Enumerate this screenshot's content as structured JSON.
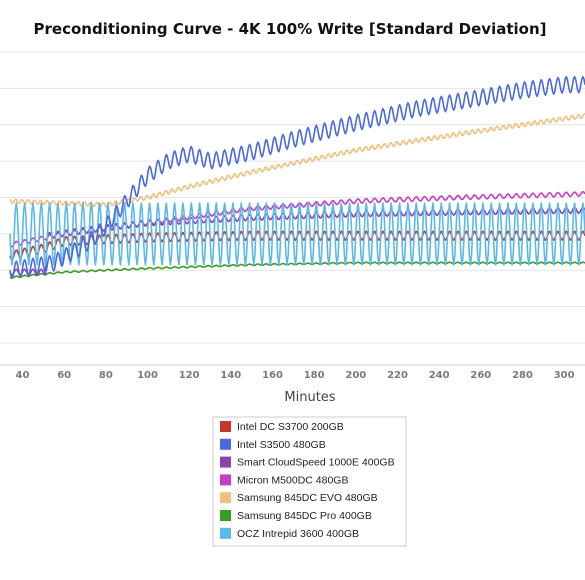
{
  "chart_data": {
    "type": "line",
    "title": "Preconditioning Curve - 4K 100% Write [Standard Deviation]",
    "xlabel": "Minutes",
    "ylabel": "",
    "x_ticks": [
      "40",
      "60",
      "80",
      "100",
      "120",
      "140",
      "160",
      "180",
      "200",
      "220",
      "240",
      "260",
      "280",
      "300"
    ],
    "xlim": [
      34,
      310
    ],
    "ylim": [
      0,
      8
    ],
    "grid": "horizontal",
    "legend_position": "bottom",
    "series": [
      {
        "name": "Intel DC S3700 200GB",
        "color": "#c0392b",
        "x": [
          34,
          50,
          60,
          80,
          100,
          150,
          200,
          250,
          310
        ],
        "y": [
          2.4,
          2.6,
          2.8,
          2.85,
          2.9,
          2.95,
          2.95,
          2.95,
          2.95
        ],
        "osc_amp": 0.12,
        "osc_period": 4
      },
      {
        "name": "Intel S3500 480GB",
        "color": "#4a69dd",
        "x": [
          34,
          55,
          70,
          80,
          90,
          100,
          110,
          120,
          130,
          150,
          170,
          200,
          230,
          260,
          280,
          300,
          310
        ],
        "y": [
          2.0,
          2.2,
          2.7,
          3.2,
          3.9,
          4.6,
          5.0,
          5.2,
          5.0,
          5.25,
          5.6,
          6.05,
          6.45,
          6.75,
          6.95,
          7.1,
          7.1
        ],
        "osc_amp": 0.22,
        "osc_period": 4
      },
      {
        "name": "Smart CloudSpeed 1000E 400GB",
        "color": "#8e44ad",
        "x": [
          34,
          51,
          52,
          70,
          100,
          150,
          200,
          250,
          310
        ],
        "y": [
          1.95,
          1.95,
          2.95,
          3.1,
          3.3,
          3.45,
          3.55,
          3.6,
          3.65
        ],
        "osc_amp": 0.08,
        "osc_period": 4
      },
      {
        "name": "Micron M500DC 480GB",
        "color": "#c83ec0",
        "x": [
          34,
          60,
          100,
          150,
          200,
          250,
          310
        ],
        "y": [
          2.7,
          3.0,
          3.3,
          3.7,
          3.9,
          4.0,
          4.1
        ],
        "osc_amp": 0.06,
        "osc_period": 4
      },
      {
        "name": "Samsung 845DC EVO 480GB",
        "color": "#f0c080",
        "x": [
          34,
          80,
          100,
          120,
          150,
          200,
          250,
          310
        ],
        "y": [
          3.9,
          3.8,
          4.0,
          4.3,
          4.7,
          5.3,
          5.75,
          6.25
        ],
        "osc_amp": 0.06,
        "osc_period": 3
      },
      {
        "name": "Samsung 845DC Pro 400GB",
        "color": "#3a9d23",
        "x": [
          34,
          60,
          100,
          150,
          200,
          250,
          310
        ],
        "y": [
          1.8,
          1.95,
          2.05,
          2.15,
          2.2,
          2.2,
          2.2
        ],
        "osc_amp": 0.02,
        "osc_period": 4
      },
      {
        "name": "OCZ Intrepid 3600 400GB",
        "color": "#5bb8ea",
        "x": [
          34,
          310
        ],
        "y": [
          3.0,
          3.0
        ],
        "osc_amp": 0.85,
        "osc_period": 4
      }
    ]
  }
}
